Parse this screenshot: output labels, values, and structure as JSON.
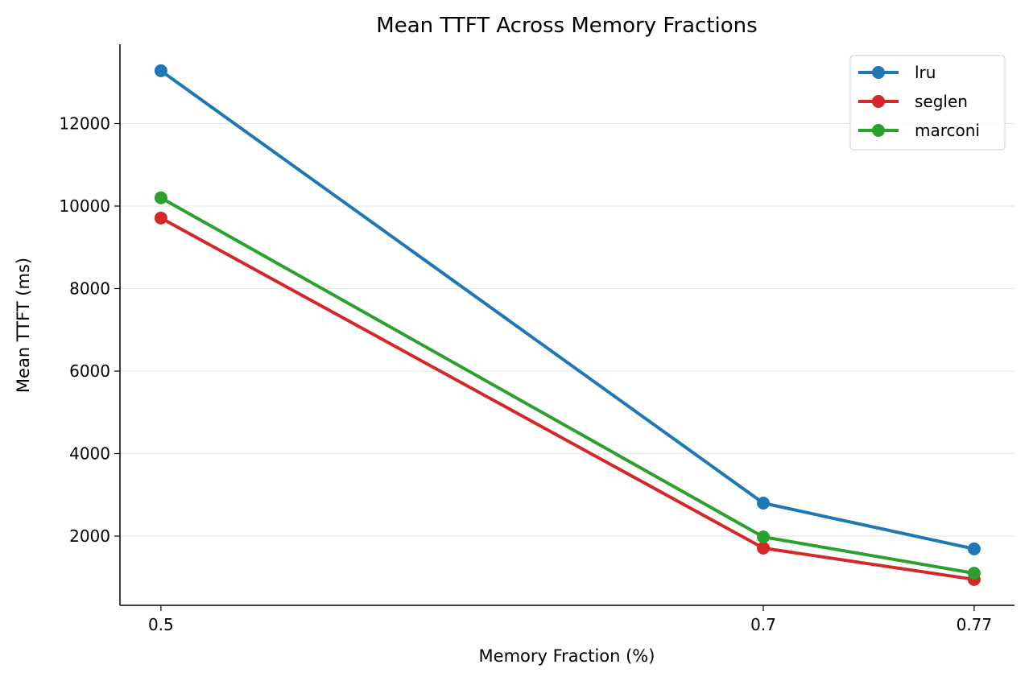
{
  "chart_data": {
    "type": "line",
    "title": "Mean TTFT Across Memory Fractions",
    "xlabel": "Memory Fraction (%)",
    "ylabel": "Mean TTFT (ms)",
    "x": [
      0.5,
      0.7,
      0.77
    ],
    "x_tick_labels": [
      "0.5",
      "0.7",
      "0.77"
    ],
    "xlim": [
      0.4864,
      0.7834
    ],
    "ylim": [
      322,
      13922
    ],
    "y_ticks": [
      2000,
      4000,
      6000,
      8000,
      10000,
      12000
    ],
    "y_tick_labels": [
      "2000",
      "4000",
      "6000",
      "8000",
      "10000",
      "12000"
    ],
    "grid": "horizontal",
    "legend_position": "top-right",
    "series": [
      {
        "name": "lru",
        "color": "#1f77b4",
        "values": [
          13280,
          2800,
          1690
        ]
      },
      {
        "name": "seglen",
        "color": "#d62728",
        "values": [
          9710,
          1710,
          950
        ]
      },
      {
        "name": "marconi",
        "color": "#2ca02c",
        "values": [
          10200,
          1980,
          1100
        ]
      }
    ]
  }
}
